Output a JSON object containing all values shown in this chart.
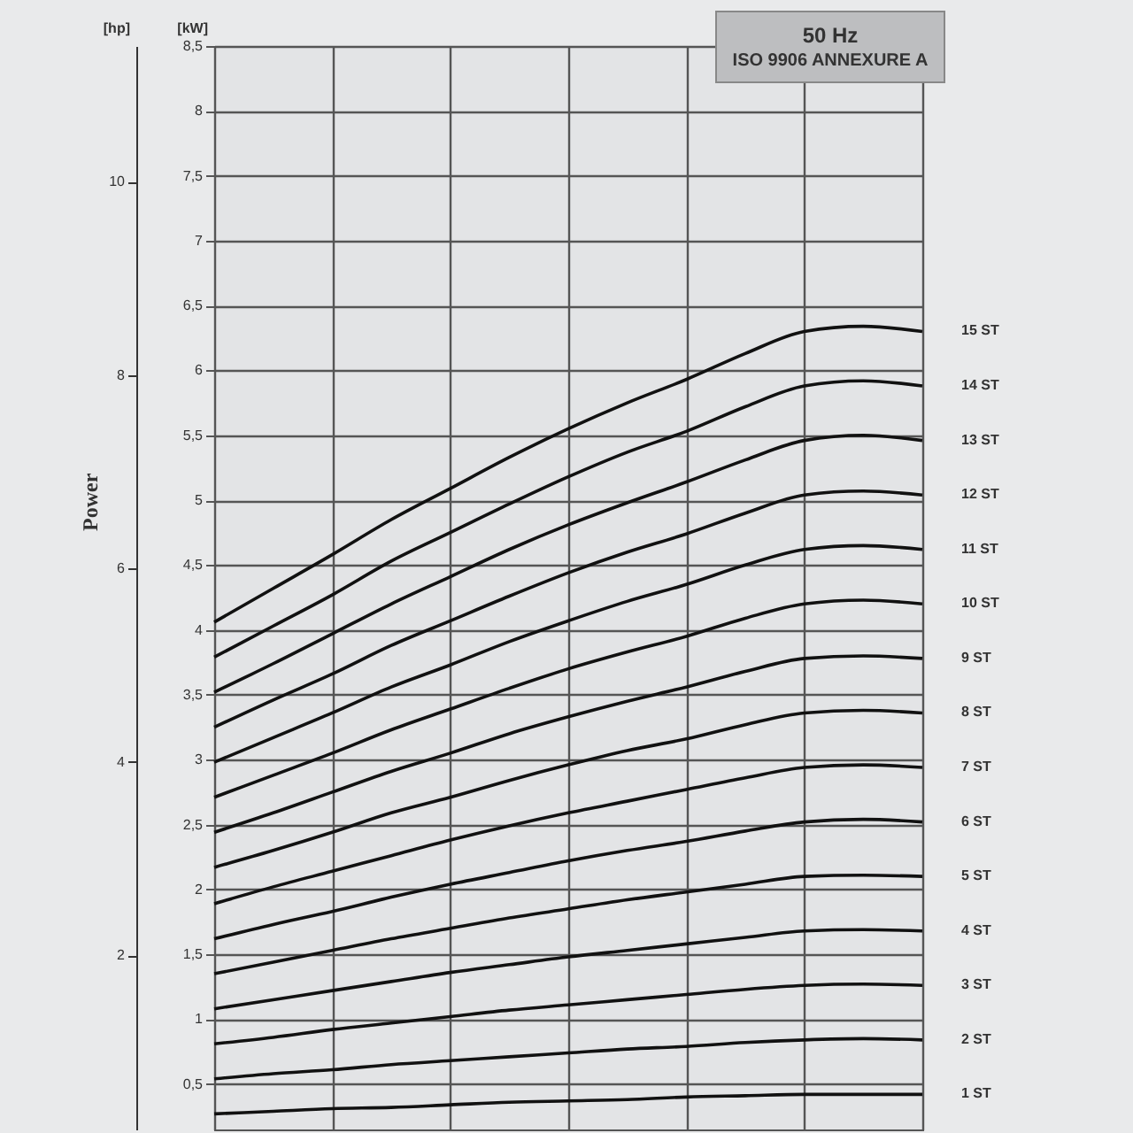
{
  "chart_data": {
    "type": "line",
    "title": "50 Hz",
    "subtitle": "ISO 9906 ANNEXURE A",
    "ylabel": "[kW]",
    "y2label": "[hp]",
    "annotations": [
      "Power"
    ],
    "categories": [
      null,
      null,
      null,
      null,
      null,
      null,
      null,
      null,
      null,
      null,
      null,
      null,
      null
    ],
    "ylim": [
      0.15,
      8.5
    ],
    "yticks": [
      {
        "value": 0.5,
        "label": "0,5"
      },
      1,
      {
        "value": 1.5,
        "label": "1,5"
      },
      2,
      {
        "value": 2.5,
        "label": "2,5"
      },
      3,
      {
        "value": 3.5,
        "label": "3,5"
      },
      4,
      {
        "value": 4.5,
        "label": "4,5"
      },
      5,
      {
        "value": 5.5,
        "label": "5,5"
      },
      6,
      {
        "value": 6.5,
        "label": "6,5"
      },
      7,
      {
        "value": 7.5,
        "label": "7,5"
      },
      8,
      {
        "value": 8.5,
        "label": "8,5"
      }
    ],
    "y2lim": [
      0.2,
      11.4
    ],
    "y2ticks": [
      2,
      4,
      6,
      8,
      10
    ],
    "grid": true,
    "legend": false,
    "marker": "none",
    "line_style": "solid",
    "series": [
      {
        "name": "1 ST",
        "color": "#111111",
        "values": [
          0.27,
          0.29,
          0.31,
          0.32,
          0.34,
          0.36,
          0.37,
          0.38,
          0.4,
          0.41,
          0.42,
          0.42,
          0.42
        ]
      },
      {
        "name": "2 ST",
        "color": "#111111",
        "values": [
          0.54,
          0.58,
          0.61,
          0.65,
          0.68,
          0.71,
          0.74,
          0.77,
          0.79,
          0.82,
          0.84,
          0.85,
          0.84
        ]
      },
      {
        "name": "3 ST",
        "color": "#111111",
        "values": [
          0.81,
          0.86,
          0.92,
          0.97,
          1.02,
          1.07,
          1.11,
          1.15,
          1.19,
          1.23,
          1.26,
          1.27,
          1.26
        ]
      },
      {
        "name": "4 ST",
        "color": "#111111",
        "values": [
          1.08,
          1.15,
          1.22,
          1.29,
          1.36,
          1.42,
          1.48,
          1.53,
          1.58,
          1.63,
          1.68,
          1.69,
          1.68
        ]
      },
      {
        "name": "5 ST",
        "color": "#111111",
        "values": [
          1.35,
          1.44,
          1.53,
          1.62,
          1.7,
          1.78,
          1.85,
          1.92,
          1.98,
          2.04,
          2.1,
          2.11,
          2.1
        ]
      },
      {
        "name": "6 ST",
        "color": "#111111",
        "values": [
          1.62,
          1.73,
          1.83,
          1.94,
          2.04,
          2.13,
          2.22,
          2.3,
          2.37,
          2.45,
          2.52,
          2.54,
          2.52
        ]
      },
      {
        "name": "7 ST",
        "color": "#111111",
        "values": [
          1.89,
          2.02,
          2.14,
          2.26,
          2.38,
          2.49,
          2.59,
          2.68,
          2.77,
          2.86,
          2.94,
          2.96,
          2.94
        ]
      },
      {
        "name": "8 ST",
        "color": "#111111",
        "values": [
          2.17,
          2.3,
          2.44,
          2.59,
          2.71,
          2.84,
          2.96,
          3.07,
          3.16,
          3.27,
          3.36,
          3.38,
          3.36
        ]
      },
      {
        "name": "9 ST",
        "color": "#111111",
        "values": [
          2.44,
          2.59,
          2.75,
          2.91,
          3.05,
          3.2,
          3.33,
          3.45,
          3.56,
          3.68,
          3.78,
          3.8,
          3.78
        ]
      },
      {
        "name": "10 ST",
        "color": "#111111",
        "values": [
          2.71,
          2.88,
          3.05,
          3.23,
          3.39,
          3.55,
          3.7,
          3.83,
          3.95,
          4.09,
          4.2,
          4.23,
          4.2
        ]
      },
      {
        "name": "11 ST",
        "color": "#111111",
        "values": [
          2.98,
          3.17,
          3.36,
          3.56,
          3.73,
          3.91,
          4.07,
          4.22,
          4.35,
          4.5,
          4.62,
          4.65,
          4.62
        ]
      },
      {
        "name": "12 ST",
        "color": "#111111",
        "values": [
          3.25,
          3.46,
          3.66,
          3.88,
          4.07,
          4.26,
          4.44,
          4.6,
          4.74,
          4.9,
          5.04,
          5.07,
          5.04
        ]
      },
      {
        "name": "13 ST",
        "color": "#111111",
        "values": [
          3.52,
          3.74,
          3.97,
          4.2,
          4.41,
          4.62,
          4.81,
          4.98,
          5.14,
          5.31,
          5.46,
          5.5,
          5.46
        ]
      },
      {
        "name": "14 ST",
        "color": "#111111",
        "values": [
          3.79,
          4.03,
          4.27,
          4.53,
          4.75,
          4.97,
          5.18,
          5.37,
          5.53,
          5.72,
          5.88,
          5.92,
          5.88
        ]
      },
      {
        "name": "15 ST",
        "color": "#111111",
        "values": [
          4.06,
          4.32,
          4.58,
          4.85,
          5.09,
          5.33,
          5.55,
          5.75,
          5.93,
          6.13,
          6.3,
          6.34,
          6.3
        ]
      }
    ]
  }
}
